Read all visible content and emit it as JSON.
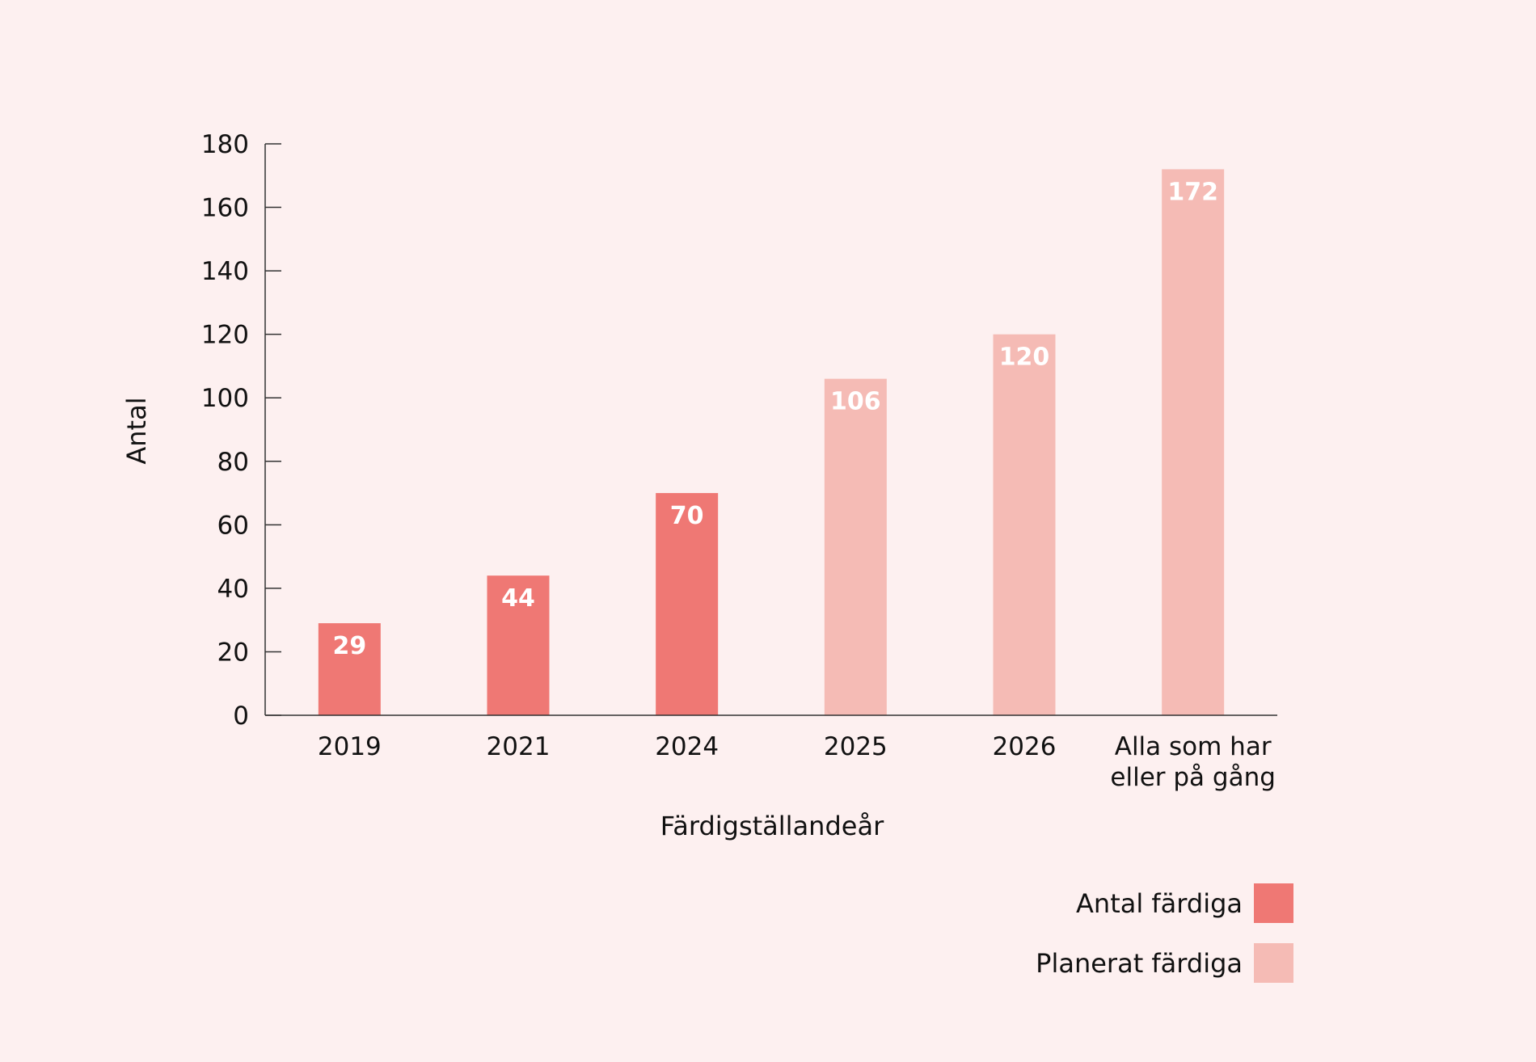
{
  "chart_data": {
    "type": "bar",
    "title": "",
    "xlabel": "Färdigställandeår",
    "ylabel": "Antal",
    "ylim": [
      0,
      180
    ],
    "yticks": [
      0,
      20,
      40,
      60,
      80,
      100,
      120,
      140,
      160,
      180
    ],
    "categories": [
      [
        "2019"
      ],
      [
        "2021"
      ],
      [
        "2024"
      ],
      [
        "2025"
      ],
      [
        "2026"
      ],
      [
        "Alla som har",
        "eller på gång"
      ]
    ],
    "values": [
      29,
      44,
      70,
      106,
      120,
      172
    ],
    "bar_series": [
      "actual",
      "actual",
      "actual",
      "planned",
      "planned",
      "planned"
    ],
    "series": [
      {
        "key": "actual",
        "name": "Antal färdiga",
        "color": "#ef7874"
      },
      {
        "key": "planned",
        "name": "Planerat färdiga",
        "color": "#f5bbb5"
      }
    ],
    "grid": false,
    "legend_position": "bottom-right"
  },
  "colors": {
    "background": "#fdf0f0",
    "axis": "#333333",
    "text": "#111111",
    "label_text": "#ffffff"
  }
}
